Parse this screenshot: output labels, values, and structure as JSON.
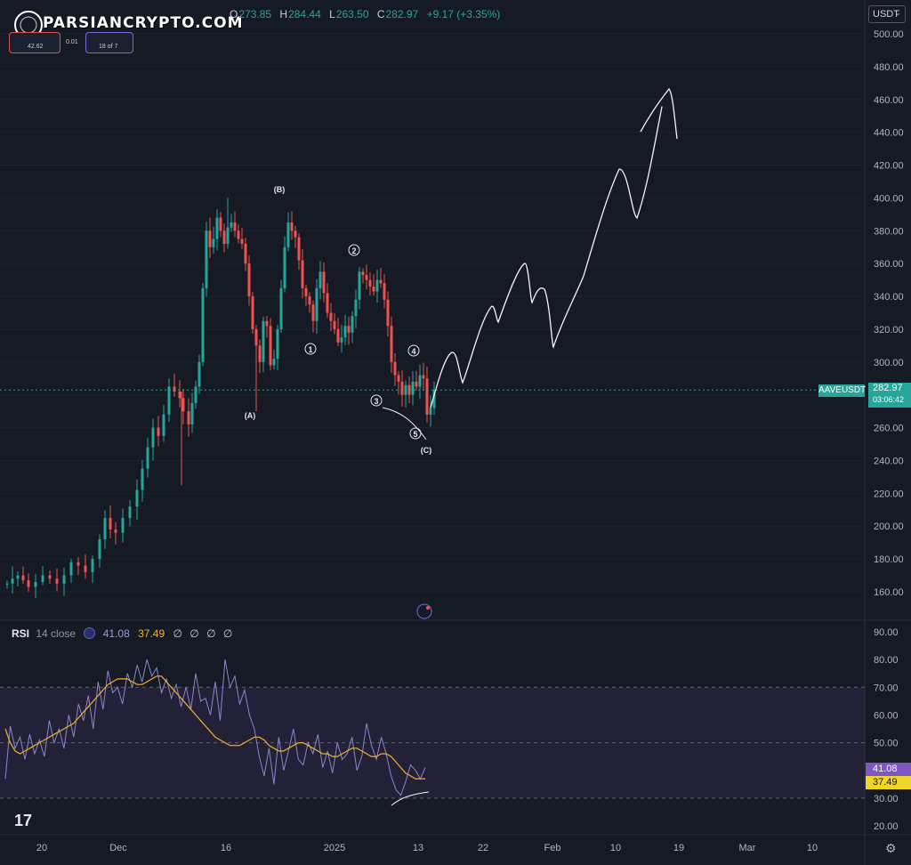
{
  "watermark": {
    "text": "PARSIANCRYPTO.COM",
    "badge_1": "42.62",
    "badge_2": "0.01",
    "badge_3": "18 of 7"
  },
  "ohlc": {
    "o_label": "O",
    "o": "273.85",
    "h_label": "H",
    "h": "284.44",
    "l_label": "L",
    "l": "263.50",
    "c_label": "C",
    "c": "282.97",
    "change": "+9.17 (+3.35%)"
  },
  "currency": {
    "label": "USDT",
    "icon": "chevron-down-icon"
  },
  "symbol": {
    "label": "AAVEUSDT",
    "price": "282.97",
    "countdown": "03:06:42"
  },
  "rsi": {
    "title": "RSI",
    "params": "14 close",
    "value": "41.08",
    "ma": "37.49",
    "zeros": [
      "∅",
      "∅",
      "∅",
      "∅"
    ],
    "value_color": "#7e57c2",
    "ma_color": "#f0b429"
  },
  "tv_logo": "17",
  "chart_data": [
    {
      "type": "candlestick",
      "symbol": "AAVEUSDT",
      "ylim": [
        145,
        505
      ],
      "ytick_labels": [
        "500.00",
        "480.00",
        "460.00",
        "440.00",
        "420.00",
        "400.00",
        "380.00",
        "360.00",
        "340.00",
        "320.00",
        "300.00",
        "280.00",
        "260.00",
        "240.00",
        "220.00",
        "200.00",
        "180.00",
        "160.00"
      ],
      "xtick_labels": [
        "20",
        "Dec",
        "16",
        "2025",
        "13",
        "22",
        "Feb",
        "10",
        "19",
        "Mar",
        "10"
      ],
      "last_price": 282.97,
      "up_color": "#26a69a",
      "down_color": "#ef5350",
      "wave_labels": [
        {
          "text": "(A)",
          "x": "Dec 20",
          "y": 271
        },
        {
          "text": "(B)",
          "x": "Dec 16",
          "y": 405
        },
        {
          "text": "1",
          "x": "Dec 27",
          "y": 310
        },
        {
          "text": "2",
          "x": "Jan 5",
          "y": 368
        },
        {
          "text": "3",
          "x": "Jan 8",
          "y": 275
        },
        {
          "text": "4",
          "x": "Jan 10",
          "y": 304
        },
        {
          "text": "5",
          "x": "Jan 12",
          "y": 257
        },
        {
          "text": "(C)",
          "x": "Jan 13",
          "y": 247
        }
      ],
      "projection_note": "hand-drawn upward projection path toward ~460"
    },
    {
      "type": "line",
      "title": "RSI 14 close",
      "ylim": [
        15,
        93
      ],
      "ytick_labels": [
        "90.00",
        "80.00",
        "70.00",
        "60.00",
        "50.00",
        "40.00",
        "30.00",
        "20.00"
      ],
      "band": [
        30,
        70
      ],
      "midline": 50,
      "series": [
        {
          "name": "RSI",
          "last": 41.08,
          "values": [
            37,
            56,
            48,
            52,
            44,
            53,
            46,
            51,
            45,
            58,
            50,
            55,
            48,
            60,
            52,
            64,
            58,
            67,
            55,
            72,
            62,
            76,
            68,
            70,
            64,
            75,
            70,
            78,
            72,
            80,
            74,
            77,
            68,
            73,
            66,
            71,
            63,
            70,
            62,
            75,
            65,
            66,
            60,
            72,
            58,
            80,
            70,
            74,
            64,
            69,
            60,
            55,
            45,
            38,
            48,
            35,
            52,
            40,
            47,
            55,
            44,
            42,
            50,
            46,
            53,
            41,
            47,
            39,
            50,
            44,
            46,
            52,
            40,
            45,
            57,
            49,
            44,
            52,
            46,
            38,
            33,
            31,
            36,
            42,
            40,
            37,
            41
          ]
        },
        {
          "name": "RSI MA",
          "last": 37.49,
          "values": [
            55,
            50,
            47,
            46,
            47,
            48,
            49,
            50,
            51,
            52,
            53,
            54,
            55,
            56,
            57,
            59,
            61,
            63,
            65,
            67,
            69,
            71,
            72,
            73,
            73,
            73,
            72,
            71,
            71,
            72,
            73,
            74,
            74,
            72,
            70,
            68,
            66,
            64,
            62,
            60,
            58,
            56,
            54,
            52,
            51,
            50,
            49,
            49,
            49,
            50,
            51,
            52,
            52,
            51,
            49,
            48,
            47,
            47,
            48,
            49,
            50,
            50,
            49,
            48,
            47,
            46,
            46,
            45,
            45,
            46,
            47,
            48,
            48,
            47,
            46,
            45,
            45,
            46,
            46,
            45,
            43,
            41,
            39,
            38,
            37,
            37,
            37
          ]
        }
      ]
    }
  ]
}
